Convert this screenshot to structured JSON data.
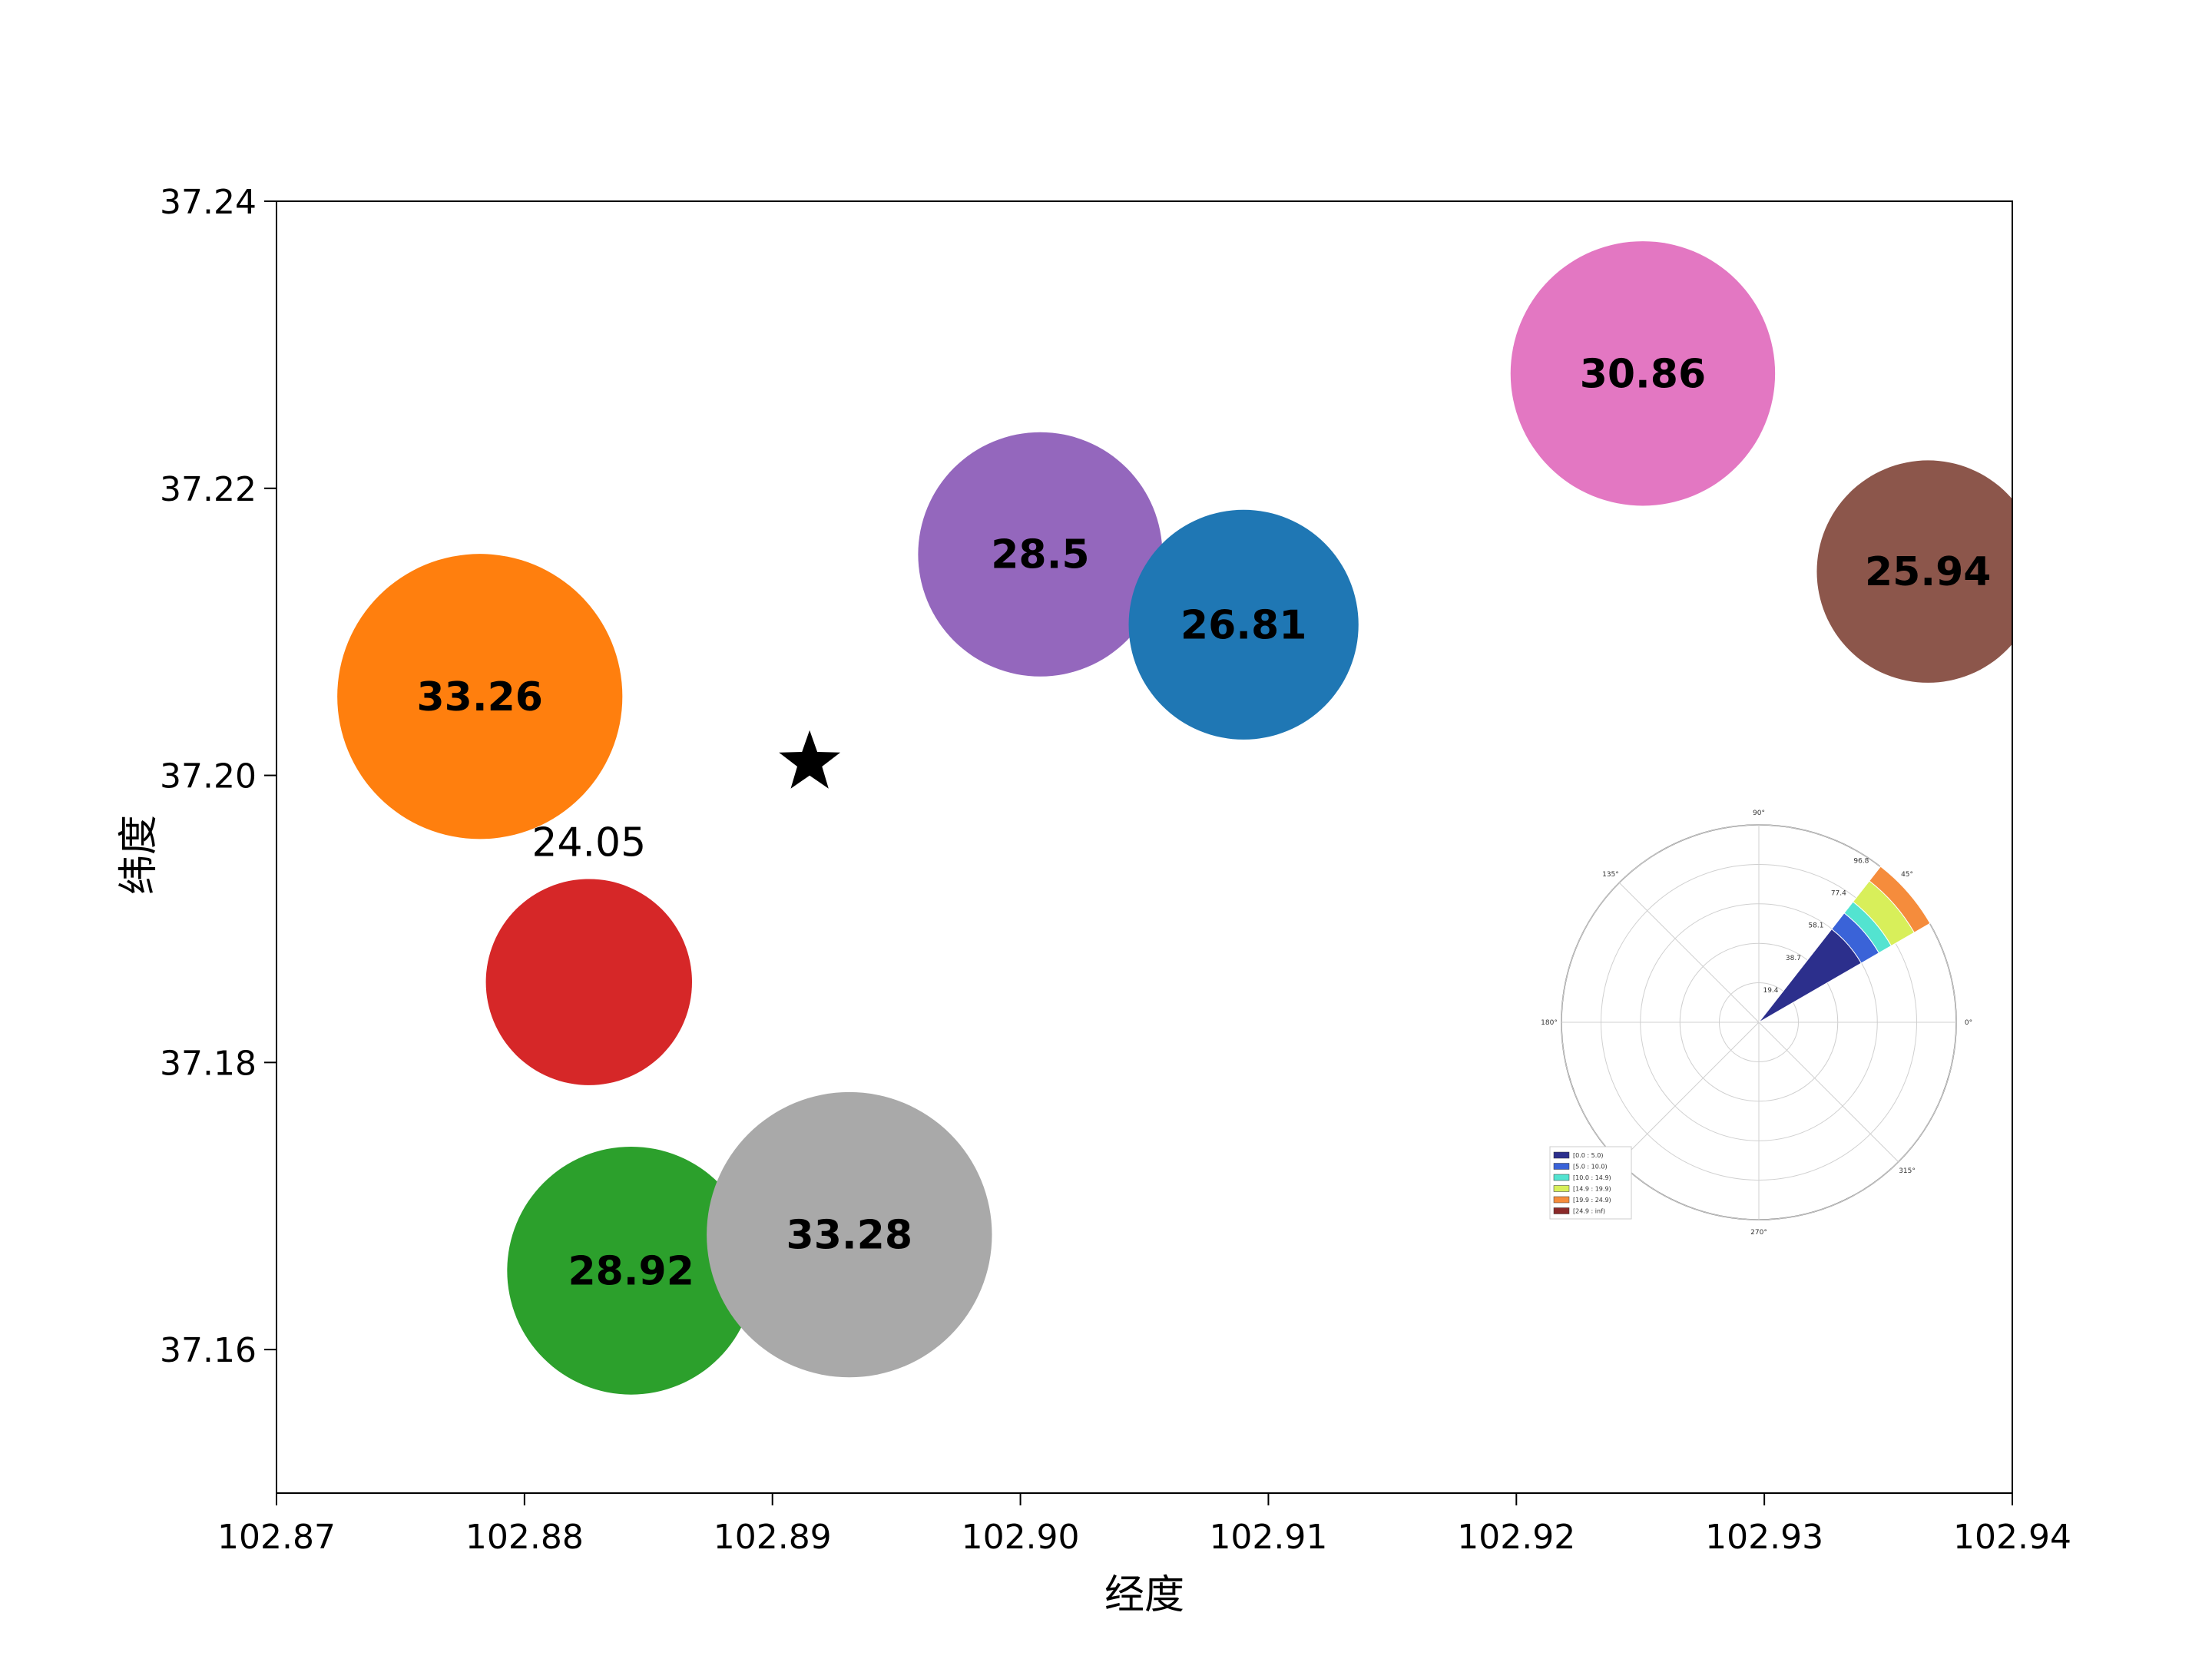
{
  "chart_data": {
    "type": "scatter",
    "title": "",
    "xlabel": "经度",
    "ylabel": "纬度",
    "xlim": [
      102.87,
      102.94
    ],
    "ylim": [
      37.15,
      37.24
    ],
    "xticks": [
      102.87,
      102.88,
      102.89,
      102.9,
      102.91,
      102.92,
      102.93,
      102.94
    ],
    "xtick_labels": [
      "102.87",
      "102.88",
      "102.89",
      "102.90",
      "102.91",
      "102.92",
      "102.93",
      "102.94"
    ],
    "yticks": [
      37.16,
      37.18,
      37.2,
      37.22,
      37.24
    ],
    "ytick_labels": [
      "37.16",
      "37.18",
      "37.20",
      "37.22",
      "37.24"
    ],
    "grid": false,
    "points": [
      {
        "x": 102.8782,
        "y": 37.2055,
        "value": 33.26,
        "label": "33.26",
        "color": "#ff7f0e",
        "bold": true
      },
      {
        "x": 102.8826,
        "y": 37.1856,
        "value": 24.05,
        "label": "24.05",
        "color": "#d62728",
        "bold": false,
        "label_position": "above"
      },
      {
        "x": 102.8843,
        "y": 37.1655,
        "value": 28.92,
        "label": "28.92",
        "color": "#2ca02c",
        "bold": true
      },
      {
        "x": 102.8931,
        "y": 37.168,
        "value": 33.28,
        "label": "33.28",
        "color": "#a9a9a9",
        "bold": true
      },
      {
        "x": 102.9008,
        "y": 37.2154,
        "value": 28.5,
        "label": "28.5",
        "color": "#9467bd",
        "bold": true
      },
      {
        "x": 102.909,
        "y": 37.2105,
        "value": 26.81,
        "label": "26.81",
        "color": "#1f77b4",
        "bold": true
      },
      {
        "x": 102.9251,
        "y": 37.228,
        "value": 30.86,
        "label": "30.86",
        "color": "#e377c2",
        "bold": true
      },
      {
        "x": 102.9366,
        "y": 37.2142,
        "value": 25.94,
        "label": "25.94",
        "color": "#8c564b",
        "bold": true
      }
    ],
    "marker": {
      "x": 102.8915,
      "y": 37.2009,
      "symbol": "star",
      "color": "#000000"
    },
    "inset": {
      "type": "windrose",
      "position": "lower-right",
      "angle_labels": [
        "0°",
        "45°",
        "90°",
        "135°",
        "180°",
        "270°",
        "315°"
      ],
      "angle_values": [
        0,
        45,
        90,
        135,
        180,
        270,
        315
      ],
      "radial_ticks": [
        19.4,
        38.7,
        58.1,
        77.4,
        96.8
      ],
      "radial_tick_labels": [
        "19.4",
        "38.7",
        "58.1",
        "77.4",
        "96.8"
      ],
      "rmax": 96.8,
      "sector": {
        "from_deg": 30,
        "to_deg": 52
      },
      "bins": [
        {
          "label": "[0.0 : 5.0)",
          "from": 0,
          "to": 58,
          "color": "#2c2f8c"
        },
        {
          "label": "[5.0 : 10.0)",
          "from": 58,
          "to": 68,
          "color": "#3a63d8"
        },
        {
          "label": "[10.0 : 14.9)",
          "from": 68,
          "to": 75,
          "color": "#53e3d0"
        },
        {
          "label": "[14.9 : 19.9)",
          "from": 75,
          "to": 88,
          "color": "#d8ef5a"
        },
        {
          "label": "[19.9 : 24.9)",
          "from": 88,
          "to": 97,
          "color": "#f58c3c"
        },
        {
          "label": "[24.9 : inf)",
          "from": 97,
          "to": 97,
          "color": "#8b2a2a"
        }
      ]
    }
  }
}
